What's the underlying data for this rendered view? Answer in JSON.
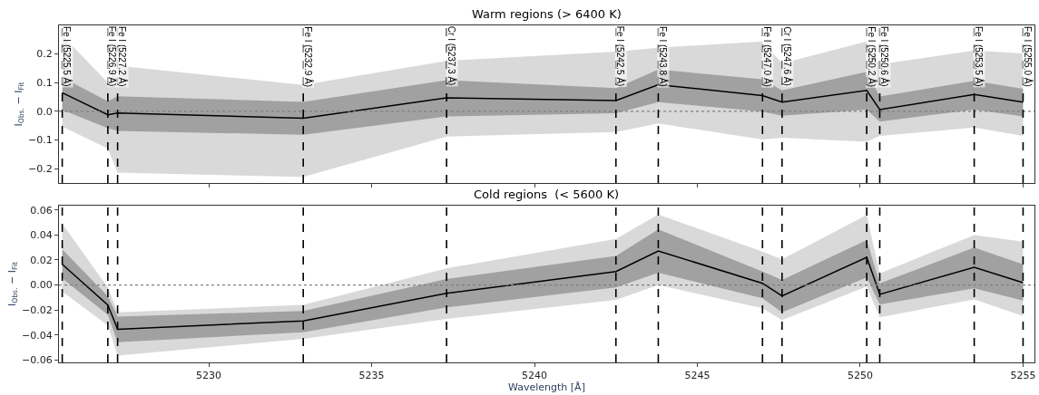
{
  "chart_data": [
    {
      "type": "line",
      "title": "Warm regions (> 6400 K)",
      "ylabel": "I$_{Obs.}$ − I$_{Fit}$",
      "tick_labels": "y",
      "x": [
        5225.5,
        5226.9,
        5227.2,
        5232.9,
        5237.3,
        5242.5,
        5243.8,
        5247.0,
        5247.6,
        5250.2,
        5250.6,
        5253.5,
        5255.0
      ],
      "xlim": [
        5225.4,
        5255.35
      ],
      "xticks": [
        5230,
        5235,
        5240,
        5245,
        5250,
        5255
      ],
      "ylim": [
        -0.25,
        0.3
      ],
      "yticks": [
        {
          "value": -0.2,
          "label": "−0.2"
        },
        {
          "value": -0.1,
          "label": "−0.1"
        },
        {
          "value": 0.0,
          "label": "0.0"
        },
        {
          "value": 0.1,
          "label": "0.1"
        },
        {
          "value": 0.2,
          "label": "0.2"
        }
      ],
      "series": [
        {
          "color": "#d9d9d9",
          "values": [
            null,
            null,
            null,
            null,
            null,
            null,
            null,
            null,
            null,
            null,
            null,
            null,
            null
          ],
          "lower": [
            -0.053,
            -0.13,
            -0.214,
            -0.229,
            -0.088,
            -0.072,
            -0.042,
            -0.098,
            -0.092,
            -0.106,
            -0.086,
            -0.056,
            -0.086
          ],
          "upper": [
            0.265,
            0.1,
            0.159,
            0.092,
            0.176,
            0.208,
            0.222,
            0.244,
            0.167,
            0.244,
            0.164,
            0.212,
            0.202
          ]
        },
        {
          "color": "#000000",
          "values": [
            0.065,
            -0.012,
            -0.006,
            -0.024,
            0.047,
            0.038,
            0.093,
            0.055,
            0.032,
            0.073,
            0.006,
            0.059,
            0.032
          ],
          "lower": [
            0.005,
            -0.059,
            -0.068,
            -0.082,
            -0.018,
            -0.007,
            0.032,
            -0.001,
            -0.015,
            0.006,
            -0.036,
            0.006,
            -0.018
          ],
          "upper": [
            0.118,
            0.035,
            0.053,
            0.033,
            0.109,
            0.081,
            0.146,
            0.112,
            0.073,
            0.138,
            0.052,
            0.106,
            0.079
          ]
        }
      ],
      "ref_lines": [
        {
          "axis": "y",
          "value": 0,
          "color": "#808080",
          "line_style": "dotted"
        },
        {
          "axis": "x",
          "value": 5225.5,
          "label": "Fe I (5225.5 Å)",
          "color": "#000000",
          "line_style": "dashed"
        },
        {
          "axis": "x",
          "value": 5226.9,
          "label": "Fe I (5226.9 Å)",
          "color": "#000000",
          "line_style": "dashed"
        },
        {
          "axis": "x",
          "value": 5227.2,
          "label": "Fe I (5227.2 Å)",
          "color": "#000000",
          "line_style": "dashed"
        },
        {
          "axis": "x",
          "value": 5232.9,
          "label": "Fe I (5232.9 Å)",
          "color": "#000000",
          "line_style": "dashed"
        },
        {
          "axis": "x",
          "value": 5237.3,
          "label": "Cr I (5237.3 Å)",
          "color": "#000000",
          "line_style": "dashed"
        },
        {
          "axis": "x",
          "value": 5242.5,
          "label": "Fe I (5242.5 Å)",
          "color": "#000000",
          "line_style": "dashed"
        },
        {
          "axis": "x",
          "value": 5243.8,
          "label": "Fe I (5243.8 Å)",
          "color": "#000000",
          "line_style": "dashed"
        },
        {
          "axis": "x",
          "value": 5247.0,
          "label": "Fe I (5247.0 Å)",
          "color": "#000000",
          "line_style": "dashed"
        },
        {
          "axis": "x",
          "value": 5247.6,
          "label": "Cr I (5247.6 Å)",
          "color": "#000000",
          "line_style": "dashed"
        },
        {
          "axis": "x",
          "value": 5250.2,
          "label": "Fe I (5250.2 Å)",
          "color": "#000000",
          "line_style": "dashed"
        },
        {
          "axis": "x",
          "value": 5250.6,
          "label": "Fe I (5250.6 Å)",
          "color": "#000000",
          "line_style": "dashed"
        },
        {
          "axis": "x",
          "value": 5253.5,
          "label": "Fe I (5253.5 Å)",
          "color": "#000000",
          "line_style": "dashed"
        },
        {
          "axis": "x",
          "value": 5255.0,
          "label": "Fe I (5255.0 Å)",
          "color": "#000000",
          "line_style": "dashed"
        }
      ]
    },
    {
      "type": "line",
      "title": "Cold regions  (< 5600 K)",
      "xlabel": "Wavelength [Å]",
      "ylabel": "I$_{Obs.}$ − I$_{Fit}$",
      "x": [
        5225.5,
        5226.9,
        5227.2,
        5232.9,
        5237.3,
        5242.5,
        5243.8,
        5247.0,
        5247.6,
        5250.2,
        5250.6,
        5253.5,
        5255.0
      ],
      "xlim": [
        5225.4,
        5255.35
      ],
      "xticks": [
        5230,
        5235,
        5240,
        5245,
        5250,
        5255
      ],
      "ylim": [
        -0.062,
        0.0635
      ],
      "yticks": [
        {
          "value": -0.06,
          "label": "−0.06"
        },
        {
          "value": -0.04,
          "label": "−0.04"
        },
        {
          "value": -0.02,
          "label": "−0.02"
        },
        {
          "value": 0.0,
          "label": "0.00"
        },
        {
          "value": 0.02,
          "label": "0.02"
        },
        {
          "value": 0.04,
          "label": "0.04"
        },
        {
          "value": 0.06,
          "label": "0.06"
        }
      ],
      "series": [
        {
          "color": "#d9d9d9",
          "values": [
            null,
            null,
            null,
            null,
            null,
            null,
            null,
            null,
            null,
            null,
            null,
            null,
            null
          ],
          "lower": [
            -0.0053,
            -0.0325,
            -0.0565,
            -0.0432,
            -0.0272,
            -0.012,
            0.0,
            -0.0187,
            -0.028,
            -0.0013,
            -0.0259,
            -0.0115,
            -0.0248
          ],
          "upper": [
            0.049,
            -0.002,
            -0.022,
            -0.016,
            0.0133,
            0.0368,
            0.0565,
            0.0267,
            0.0205,
            0.056,
            0.0093,
            0.04,
            0.0347
          ]
        },
        {
          "color": "#000000",
          "values": [
            0.0165,
            -0.016,
            -0.0355,
            -0.0288,
            -0.0067,
            0.0107,
            0.0272,
            0.0013,
            -0.0088,
            0.0221,
            -0.0075,
            0.0141,
            0.0019
          ],
          "lower": [
            0.0053,
            -0.024,
            -0.0459,
            -0.0379,
            -0.018,
            -0.0019,
            0.0099,
            -0.0107,
            -0.0219,
            0.0061,
            -0.0155,
            -0.0027,
            -0.0125
          ],
          "upper": [
            0.0285,
            -0.009,
            -0.0253,
            -0.0208,
            0.0048,
            0.0232,
            0.0445,
            0.0107,
            0.004,
            0.036,
            0.0013,
            0.0299,
            0.0165
          ]
        }
      ],
      "ref_lines": [
        {
          "axis": "y",
          "value": 0,
          "color": "#808080",
          "line_style": "dotted"
        },
        {
          "axis": "x",
          "value": 5225.5,
          "color": "#000000",
          "line_style": "dashed"
        },
        {
          "axis": "x",
          "value": 5226.9,
          "color": "#000000",
          "line_style": "dashed"
        },
        {
          "axis": "x",
          "value": 5227.2,
          "color": "#000000",
          "line_style": "dashed"
        },
        {
          "axis": "x",
          "value": 5232.9,
          "color": "#000000",
          "line_style": "dashed"
        },
        {
          "axis": "x",
          "value": 5237.3,
          "color": "#000000",
          "line_style": "dashed"
        },
        {
          "axis": "x",
          "value": 5242.5,
          "color": "#000000",
          "line_style": "dashed"
        },
        {
          "axis": "x",
          "value": 5243.8,
          "color": "#000000",
          "line_style": "dashed"
        },
        {
          "axis": "x",
          "value": 5247.0,
          "color": "#000000",
          "line_style": "dashed"
        },
        {
          "axis": "x",
          "value": 5247.6,
          "color": "#000000",
          "line_style": "dashed"
        },
        {
          "axis": "x",
          "value": 5250.2,
          "color": "#000000",
          "line_style": "dashed"
        },
        {
          "axis": "x",
          "value": 5250.6,
          "color": "#000000",
          "line_style": "dashed"
        },
        {
          "axis": "x",
          "value": 5253.5,
          "color": "#000000",
          "line_style": "dashed"
        },
        {
          "axis": "x",
          "value": 5255.0,
          "color": "#000000",
          "line_style": "dashed"
        }
      ]
    }
  ]
}
